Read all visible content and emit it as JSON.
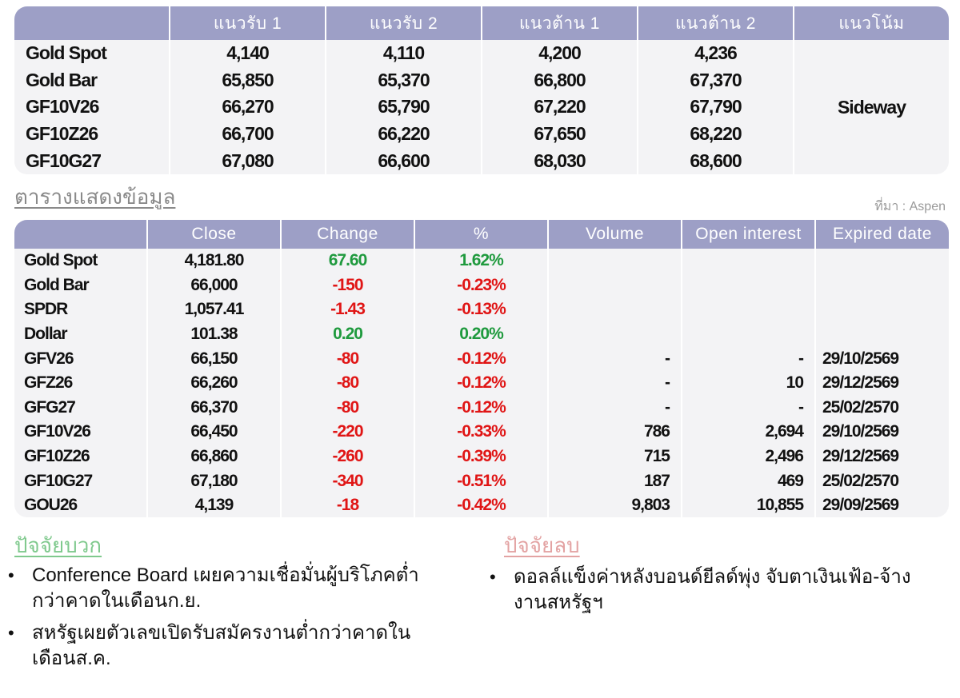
{
  "top_table": {
    "headers": [
      "",
      "แนวรับ 1",
      "แนวรับ 2",
      "แนวต้าน 1",
      "แนวต้าน 2",
      "แนวโน้ม"
    ],
    "rows": [
      {
        "name": "Gold Spot",
        "s1": "4,140",
        "s2": "4,110",
        "r1": "4,200",
        "r2": "4,236"
      },
      {
        "name": "Gold Bar",
        "s1": "65,850",
        "s2": "65,370",
        "r1": "66,800",
        "r2": "67,370"
      },
      {
        "name": "GF10V26",
        "s1": "66,270",
        "s2": "65,790",
        "r1": "67,220",
        "r2": "67,790"
      },
      {
        "name": "GF10Z26",
        "s1": "66,700",
        "s2": "66,220",
        "r1": "67,650",
        "r2": "68,220"
      },
      {
        "name": "GF10G27",
        "s1": "67,080",
        "s2": "66,600",
        "r1": "68,030",
        "r2": "68,600"
      }
    ],
    "trend": "Sideway"
  },
  "section": {
    "title": "ตารางแสดงข้อมูล",
    "source": "ที่มา : Aspen"
  },
  "data_table": {
    "headers": [
      "",
      "Close",
      "Change",
      "%",
      "Volume",
      "Open interest",
      "Expired date"
    ],
    "rows": [
      {
        "name": "Gold Spot",
        "close": "4,181.80",
        "change": "67.60",
        "pct": "1.62%",
        "volume": "",
        "oi": "",
        "expiry": "",
        "dir": "pos"
      },
      {
        "name": "Gold Bar",
        "close": "66,000",
        "change": "-150",
        "pct": "-0.23%",
        "volume": "",
        "oi": "",
        "expiry": "",
        "dir": "neg"
      },
      {
        "name": "SPDR",
        "close": "1,057.41",
        "change": "-1.43",
        "pct": "-0.13%",
        "volume": "",
        "oi": "",
        "expiry": "",
        "dir": "neg"
      },
      {
        "name": "Dollar",
        "close": "101.38",
        "change": "0.20",
        "pct": "0.20%",
        "volume": "",
        "oi": "",
        "expiry": "",
        "dir": "pos"
      },
      {
        "name": "GFV26",
        "close": "66,150",
        "change": "-80",
        "pct": "-0.12%",
        "volume": "-",
        "oi": "-",
        "expiry": "29/10/2569",
        "dir": "neg"
      },
      {
        "name": "GFZ26",
        "close": "66,260",
        "change": "-80",
        "pct": "-0.12%",
        "volume": "-",
        "oi": "10",
        "expiry": "29/12/2569",
        "dir": "neg"
      },
      {
        "name": "GFG27",
        "close": "66,370",
        "change": "-80",
        "pct": "-0.12%",
        "volume": "-",
        "oi": "-",
        "expiry": "25/02/2570",
        "dir": "neg"
      },
      {
        "name": "GF10V26",
        "close": "66,450",
        "change": "-220",
        "pct": "-0.33%",
        "volume": "786",
        "oi": "2,694",
        "expiry": "29/10/2569",
        "dir": "neg"
      },
      {
        "name": "GF10Z26",
        "close": "66,860",
        "change": "-260",
        "pct": "-0.39%",
        "volume": "715",
        "oi": "2,496",
        "expiry": "29/12/2569",
        "dir": "neg"
      },
      {
        "name": "GF10G27",
        "close": "67,180",
        "change": "-340",
        "pct": "-0.51%",
        "volume": "187",
        "oi": "469",
        "expiry": "25/02/2570",
        "dir": "neg"
      },
      {
        "name": "GOU26",
        "close": "4,139",
        "change": "-18",
        "pct": "-0.42%",
        "volume": "9,803",
        "oi": "10,855",
        "expiry": "29/09/2569",
        "dir": "neg"
      }
    ]
  },
  "factors": {
    "positive_title": "ปัจจัยบวก",
    "negative_title": "ปัจจัยลบ",
    "bullet": "•",
    "positive_items": [
      "Conference Board เผยความเชื่อมั่นผู้บริโภคต่ำกว่าคาดในเดือนก.ย.",
      "สหรัฐเผยตัวเลขเปิดรับสมัครงานต่ำกว่าคาดในเดือนส.ค."
    ],
    "negative_items": [
      "ดอลล์แข็งค่าหลังบอนด์ยีลด์พุ่ง จับตาเงินเฟ้อ-จ้างงานสหรัฐฯ"
    ]
  },
  "colors": {
    "header_bg": "#9d9fc6",
    "table_bg": "#f3f3f5",
    "positive": "#1f9a3e",
    "negative": "#e01515"
  }
}
